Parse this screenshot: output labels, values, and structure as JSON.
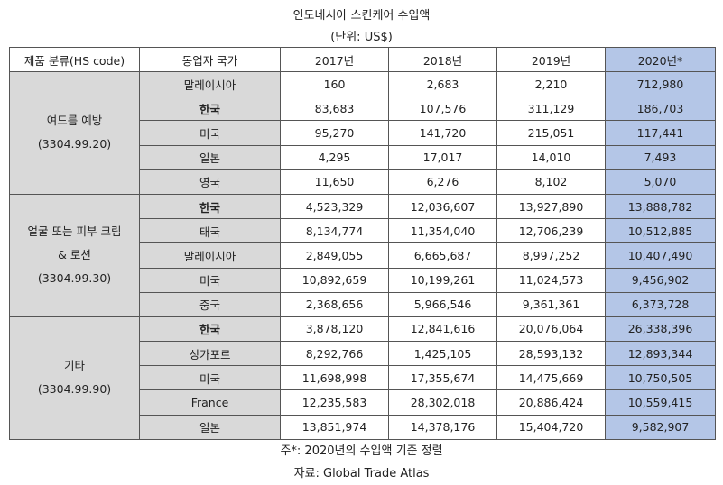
{
  "title": "인도네시아 스킨케어 수입액",
  "unit": "(단위: US$)",
  "headers": [
    "제품 분류(HS code)",
    "동업자 국가",
    "2017년",
    "2018년",
    "2019년",
    "2020년*"
  ],
  "groups": [
    {
      "name": "여드름 예방",
      "code": "(3304.99.20)",
      "rows": [
        {
          "country": "말레이시아",
          "bold": false,
          "values": [
            "160",
            "2,683",
            "2,210",
            "712,980"
          ]
        },
        {
          "country": "한국",
          "bold": true,
          "values": [
            "83,683",
            "107,576",
            "311,129",
            "186,703"
          ]
        },
        {
          "country": "미국",
          "bold": false,
          "values": [
            "95,270",
            "141,720",
            "215,051",
            "117,441"
          ]
        },
        {
          "country": "일본",
          "bold": false,
          "values": [
            "4,295",
            "17,017",
            "14,010",
            "7,493"
          ]
        },
        {
          "country": "영국",
          "bold": false,
          "values": [
            "11,650",
            "6,276",
            "8,102",
            "5,070"
          ]
        }
      ]
    },
    {
      "name": "얼굴 또는 피부 크림",
      "name2": "& 로션",
      "code": "(3304.99.30)",
      "rows": [
        {
          "country": "한국",
          "bold": true,
          "values": [
            "4,523,329",
            "12,036,607",
            "13,927,890",
            "13,888,782"
          ]
        },
        {
          "country": "태국",
          "bold": false,
          "values": [
            "8,134,774",
            "11,354,040",
            "12,706,239",
            "10,512,885"
          ]
        },
        {
          "country": "말레이시아",
          "bold": false,
          "values": [
            "2,849,055",
            "6,665,687",
            "8,997,252",
            "10,407,490"
          ]
        },
        {
          "country": "미국",
          "bold": false,
          "values": [
            "10,892,659",
            "10,199,261",
            "11,024,573",
            "9,456,902"
          ]
        },
        {
          "country": "중국",
          "bold": false,
          "values": [
            "2,368,656",
            "5,966,546",
            "9,361,361",
            "6,373,728"
          ]
        }
      ]
    },
    {
      "name": "기타",
      "code": "(3304.99.90)",
      "rows": [
        {
          "country": "한국",
          "bold": true,
          "values": [
            "3,878,120",
            "12,841,616",
            "20,076,064",
            "26,338,396"
          ]
        },
        {
          "country": "싱가포르",
          "bold": false,
          "values": [
            "8,292,766",
            "1,425,105",
            "28,593,132",
            "12,893,344"
          ]
        },
        {
          "country": "미국",
          "bold": false,
          "values": [
            "11,698,998",
            "17,355,674",
            "14,475,669",
            "10,750,505"
          ]
        },
        {
          "country": "France",
          "bold": false,
          "values": [
            "12,235,583",
            "28,302,018",
            "20,886,424",
            "10,559,415"
          ]
        },
        {
          "country": "일본",
          "bold": false,
          "values": [
            "13,851,974",
            "14,378,176",
            "15,404,720",
            "9,582,907"
          ]
        }
      ]
    }
  ],
  "footnote": "주*:  2020년의 수입액 기준 정렬",
  "source": "자료: Global Trade Atlas"
}
